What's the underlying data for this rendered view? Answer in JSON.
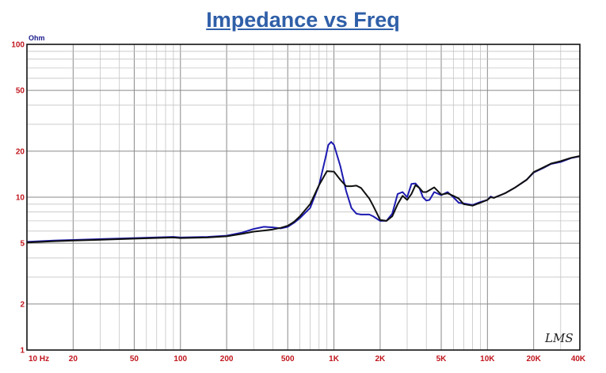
{
  "chart_data": {
    "type": "line",
    "title": "Impedance vs Freq",
    "ylabel": "Ohm",
    "x_scale": "log",
    "y_scale": "log",
    "xlim": [
      10,
      40000
    ],
    "ylim": [
      1,
      100
    ],
    "grid": true,
    "x_ticks": [
      {
        "value": 10,
        "label": "10 Hz"
      },
      {
        "value": 20,
        "label": "20"
      },
      {
        "value": 50,
        "label": "50"
      },
      {
        "value": 100,
        "label": "100"
      },
      {
        "value": 200,
        "label": "200"
      },
      {
        "value": 500,
        "label": "500"
      },
      {
        "value": 1000,
        "label": "1K"
      },
      {
        "value": 2000,
        "label": "2K"
      },
      {
        "value": 5000,
        "label": "5K"
      },
      {
        "value": 10000,
        "label": "10K"
      },
      {
        "value": 20000,
        "label": "20K"
      },
      {
        "value": 40000,
        "label": "40K"
      }
    ],
    "y_ticks": [
      {
        "value": 1,
        "label": "1"
      },
      {
        "value": 2,
        "label": "2"
      },
      {
        "value": 5,
        "label": "5"
      },
      {
        "value": 10,
        "label": "10"
      },
      {
        "value": 20,
        "label": "20"
      },
      {
        "value": 50,
        "label": "50"
      },
      {
        "value": 100,
        "label": "100"
      }
    ],
    "watermark": "LMS",
    "series": [
      {
        "color": "#1c1ab0",
        "points": [
          [
            10,
            5.1
          ],
          [
            15,
            5.2
          ],
          [
            20,
            5.25
          ],
          [
            50,
            5.4
          ],
          [
            90,
            5.5
          ],
          [
            100,
            5.45
          ],
          [
            150,
            5.5
          ],
          [
            200,
            5.6
          ],
          [
            250,
            5.85
          ],
          [
            300,
            6.2
          ],
          [
            350,
            6.4
          ],
          [
            400,
            6.35
          ],
          [
            450,
            6.25
          ],
          [
            500,
            6.4
          ],
          [
            550,
            6.8
          ],
          [
            600,
            7.3
          ],
          [
            700,
            8.5
          ],
          [
            800,
            12
          ],
          [
            880,
            18
          ],
          [
            920,
            22
          ],
          [
            960,
            23
          ],
          [
            1000,
            22
          ],
          [
            1100,
            16
          ],
          [
            1200,
            11
          ],
          [
            1300,
            8.5
          ],
          [
            1400,
            7.8
          ],
          [
            1500,
            7.7
          ],
          [
            1700,
            7.7
          ],
          [
            1800,
            7.5
          ],
          [
            2000,
            7.0
          ],
          [
            2200,
            7.0
          ],
          [
            2400,
            7.8
          ],
          [
            2600,
            10.5
          ],
          [
            2800,
            10.8
          ],
          [
            3000,
            10.0
          ],
          [
            3200,
            12.2
          ],
          [
            3400,
            12.3
          ],
          [
            3600,
            11.5
          ],
          [
            3800,
            10.0
          ],
          [
            4000,
            9.5
          ],
          [
            4200,
            9.6
          ],
          [
            4500,
            10.8
          ],
          [
            5000,
            10.3
          ],
          [
            5500,
            10.8
          ],
          [
            6000,
            10.0
          ],
          [
            6500,
            9.2
          ],
          [
            7000,
            9.1
          ],
          [
            8000,
            8.9
          ],
          [
            9000,
            9.3
          ],
          [
            10000,
            9.6
          ],
          [
            10500,
            10.1
          ],
          [
            11000,
            9.9
          ],
          [
            13000,
            10.6
          ],
          [
            15000,
            11.5
          ],
          [
            18000,
            13.0
          ],
          [
            20000,
            14.5
          ],
          [
            23000,
            15.5
          ],
          [
            26000,
            16.5
          ],
          [
            30000,
            17.0
          ],
          [
            35000,
            18.0
          ],
          [
            40000,
            18.5
          ]
        ]
      },
      {
        "color": "#111111",
        "points": [
          [
            10,
            5.05
          ],
          [
            15,
            5.15
          ],
          [
            20,
            5.2
          ],
          [
            50,
            5.35
          ],
          [
            90,
            5.45
          ],
          [
            100,
            5.4
          ],
          [
            150,
            5.45
          ],
          [
            200,
            5.55
          ],
          [
            250,
            5.75
          ],
          [
            300,
            5.95
          ],
          [
            350,
            6.05
          ],
          [
            400,
            6.15
          ],
          [
            450,
            6.3
          ],
          [
            500,
            6.5
          ],
          [
            550,
            6.9
          ],
          [
            600,
            7.5
          ],
          [
            700,
            9.0
          ],
          [
            800,
            12.0
          ],
          [
            900,
            14.8
          ],
          [
            1000,
            14.7
          ],
          [
            1100,
            13.0
          ],
          [
            1200,
            11.8
          ],
          [
            1300,
            11.8
          ],
          [
            1400,
            11.9
          ],
          [
            1500,
            11.5
          ],
          [
            1700,
            9.8
          ],
          [
            1800,
            8.8
          ],
          [
            2000,
            7.1
          ],
          [
            2200,
            7.0
          ],
          [
            2400,
            7.5
          ],
          [
            2600,
            9.0
          ],
          [
            2800,
            10.2
          ],
          [
            3000,
            9.6
          ],
          [
            3200,
            10.5
          ],
          [
            3400,
            12.0
          ],
          [
            3600,
            11.5
          ],
          [
            3800,
            10.8
          ],
          [
            4000,
            10.8
          ],
          [
            4500,
            11.6
          ],
          [
            5000,
            10.4
          ],
          [
            5500,
            10.6
          ],
          [
            6000,
            10.2
          ],
          [
            6500,
            9.8
          ],
          [
            7000,
            9.0
          ],
          [
            8000,
            8.8
          ],
          [
            9000,
            9.2
          ],
          [
            10000,
            9.6
          ],
          [
            10500,
            10.0
          ],
          [
            11000,
            9.9
          ],
          [
            13000,
            10.6
          ],
          [
            15000,
            11.5
          ],
          [
            18000,
            13.0
          ],
          [
            20000,
            14.6
          ],
          [
            23000,
            15.6
          ],
          [
            26000,
            16.6
          ],
          [
            30000,
            17.2
          ],
          [
            35000,
            18.1
          ],
          [
            40000,
            18.6
          ]
        ]
      }
    ]
  }
}
